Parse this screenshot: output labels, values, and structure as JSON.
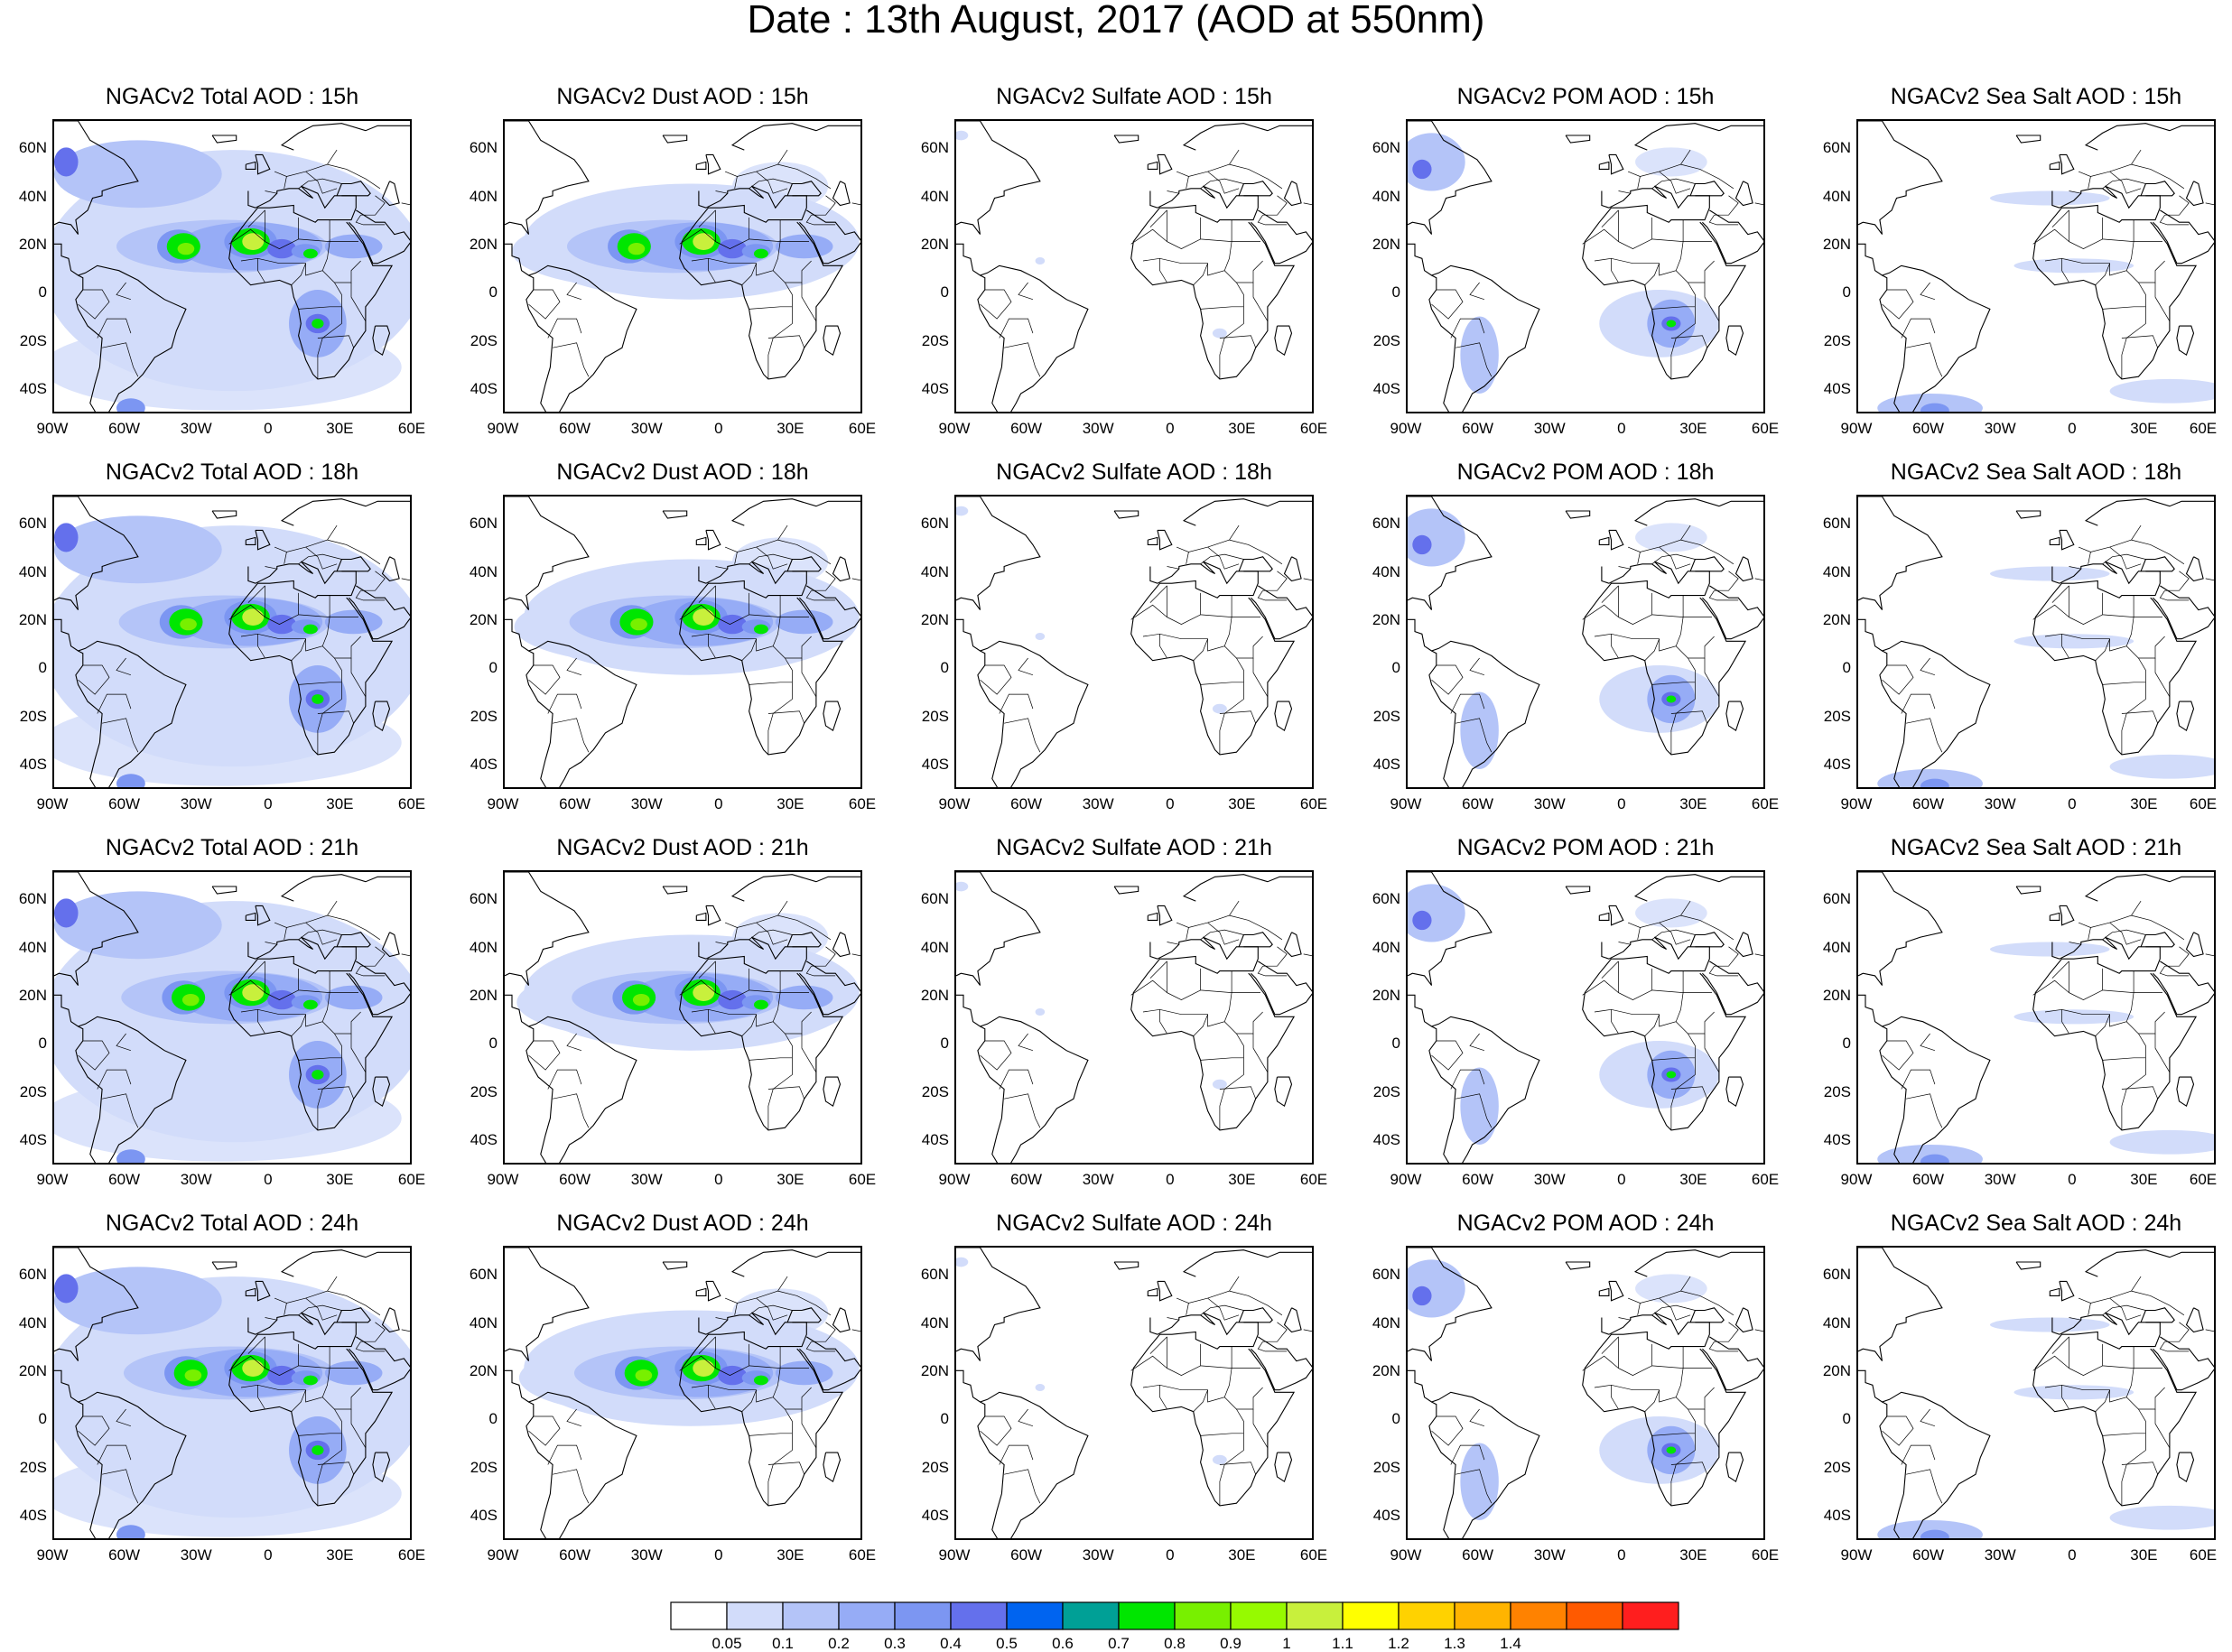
{
  "title": "Date : 13th August, 2017 (AOD at 550nm)",
  "lat_labels": [
    "60N",
    "40N",
    "20N",
    "0",
    "20S",
    "40S"
  ],
  "lon_labels": [
    "90W",
    "60W",
    "30W",
    "0",
    "30E",
    "60E"
  ],
  "panels": [
    {
      "title": "NGACv2 Total AOD : 15h",
      "species": "total",
      "hour": "15h"
    },
    {
      "title": "NGACv2 Dust AOD : 15h",
      "species": "dust",
      "hour": "15h"
    },
    {
      "title": "NGACv2 Sulfate AOD : 15h",
      "species": "sulfate",
      "hour": "15h"
    },
    {
      "title": "NGACv2 POM AOD : 15h",
      "species": "pom",
      "hour": "15h"
    },
    {
      "title": "NGACv2 Sea Salt AOD : 15h",
      "species": "seasalt",
      "hour": "15h"
    },
    {
      "title": "NGACv2 Total AOD : 18h",
      "species": "total",
      "hour": "18h"
    },
    {
      "title": "NGACv2 Dust AOD : 18h",
      "species": "dust",
      "hour": "18h"
    },
    {
      "title": "NGACv2 Sulfate AOD : 18h",
      "species": "sulfate",
      "hour": "18h"
    },
    {
      "title": "NGACv2 POM AOD : 18h",
      "species": "pom",
      "hour": "18h"
    },
    {
      "title": "NGACv2 Sea Salt AOD : 18h",
      "species": "seasalt",
      "hour": "18h"
    },
    {
      "title": "NGACv2 Total AOD : 21h",
      "species": "total",
      "hour": "21h"
    },
    {
      "title": "NGACv2 Dust AOD : 21h",
      "species": "dust",
      "hour": "21h"
    },
    {
      "title": "NGACv2 Sulfate AOD : 21h",
      "species": "sulfate",
      "hour": "21h"
    },
    {
      "title": "NGACv2 POM AOD : 21h",
      "species": "pom",
      "hour": "21h"
    },
    {
      "title": "NGACv2 Sea Salt AOD : 21h",
      "species": "seasalt",
      "hour": "21h"
    },
    {
      "title": "NGACv2 Total AOD : 24h",
      "species": "total",
      "hour": "24h"
    },
    {
      "title": "NGACv2 Dust AOD : 24h",
      "species": "dust",
      "hour": "24h"
    },
    {
      "title": "NGACv2 Sulfate AOD : 24h",
      "species": "sulfate",
      "hour": "24h"
    },
    {
      "title": "NGACv2 POM AOD : 24h",
      "species": "pom",
      "hour": "24h"
    },
    {
      "title": "NGACv2 Sea Salt  AOD : 24h",
      "species": "seasalt",
      "hour": "24h"
    }
  ],
  "colorbar": {
    "colors": [
      "#ffffff",
      "#d2dcfa",
      "#b4c4f8",
      "#96acf6",
      "#7c96f2",
      "#6470ec",
      "#0064f0",
      "#00a096",
      "#00e600",
      "#78f000",
      "#96fa00",
      "#c8f03c",
      "#ffff00",
      "#ffd200",
      "#ffb400",
      "#ff8200",
      "#ff5a00",
      "#ff1e1e"
    ],
    "labels": [
      "0.05",
      "0.1",
      "0.2",
      "0.3",
      "0.4",
      "0.5",
      "0.6",
      "0.7",
      "0.8",
      "0.9",
      "1",
      "1.1",
      "1.2",
      "1.3",
      "1.4"
    ]
  }
}
